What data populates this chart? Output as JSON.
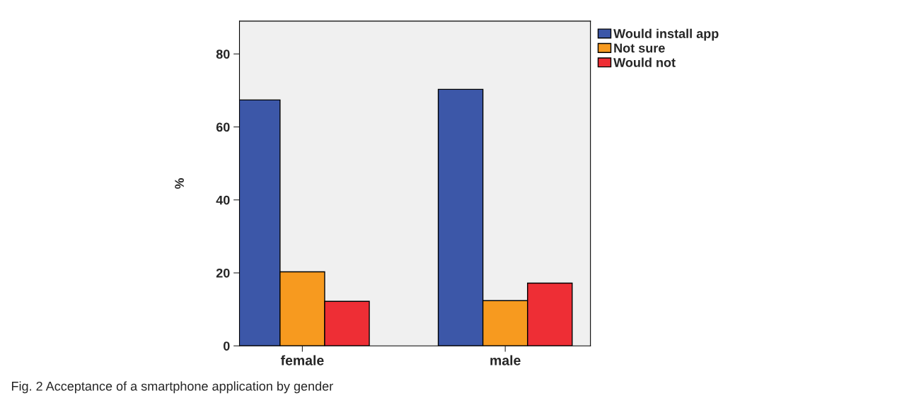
{
  "chart_data": {
    "type": "bar",
    "categories": [
      "female",
      "male"
    ],
    "ylabel": "%",
    "ylim": [
      0,
      89
    ],
    "yticks": [
      0,
      20,
      40,
      60,
      80
    ],
    "grid": false,
    "legend": "top right",
    "series": [
      {
        "name": "Would install app",
        "color": "#3c57a8",
        "values": [
          67.4,
          70.3
        ]
      },
      {
        "name": "Not sure",
        "color": "#f79a1f",
        "values": [
          20.3,
          12.4
        ]
      },
      {
        "name": "Would not",
        "color": "#ee2e35",
        "values": [
          12.2,
          17.2
        ]
      }
    ],
    "annotations": [
      "Fig. 2 Acceptance of a smartphone application by gender"
    ]
  }
}
